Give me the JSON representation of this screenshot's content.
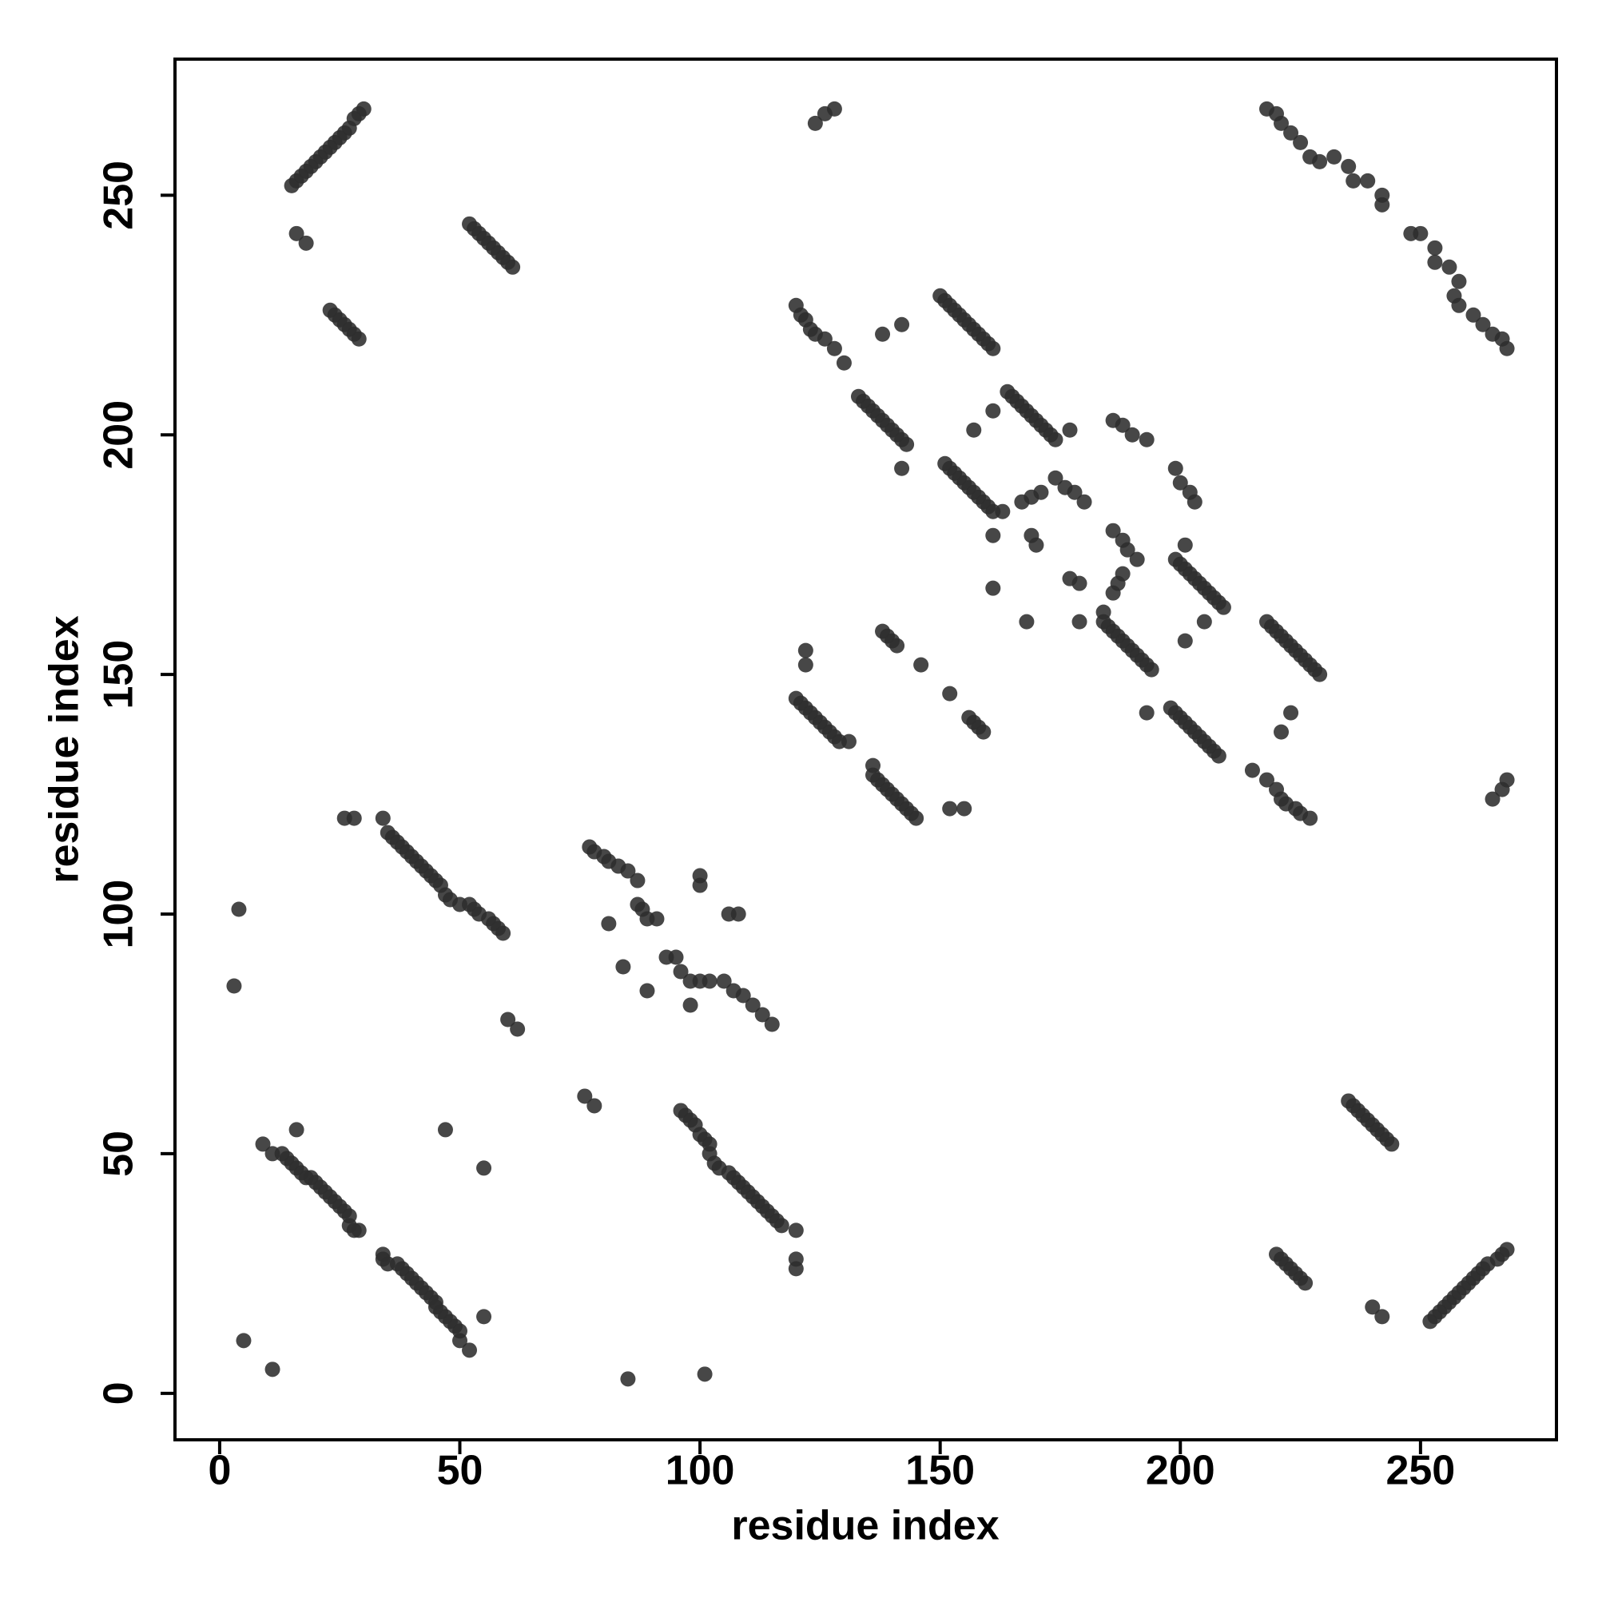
{
  "chart_data": {
    "type": "scatter",
    "xlabel": "residue index",
    "ylabel": "residue index",
    "color": "#2e2e2e",
    "xlim": [
      -9.3,
      278.3
    ],
    "ylim": [
      -9.7,
      278.4
    ],
    "xticks": [
      0,
      50,
      100,
      150,
      200,
      250
    ],
    "yticks": [
      0,
      50,
      100,
      150,
      200,
      250
    ],
    "grid": false,
    "x": [
      9,
      11,
      13,
      14,
      15,
      16,
      17,
      18,
      19,
      20,
      21,
      22,
      23,
      24,
      25,
      26,
      27,
      27,
      28,
      29,
      5,
      16,
      47,
      34,
      35,
      36,
      37,
      38,
      39,
      40,
      41,
      42,
      43,
      44,
      45,
      46,
      47,
      48,
      50,
      52,
      53,
      54,
      56,
      57,
      58,
      59,
      26,
      28,
      52,
      53,
      54,
      55,
      56,
      57,
      58,
      59,
      60,
      61,
      16,
      18,
      23,
      24,
      25,
      26,
      27,
      28,
      29,
      15,
      16,
      17,
      18,
      19,
      20,
      21,
      22,
      23,
      24,
      25,
      26,
      27,
      28,
      29,
      30,
      3,
      4,
      60,
      62,
      124,
      126,
      128,
      120,
      121,
      122,
      123,
      124,
      126,
      128,
      130,
      138,
      142,
      150,
      151,
      152,
      153,
      154,
      155,
      156,
      157,
      158,
      159,
      160,
      161,
      133,
      134,
      135,
      136,
      137,
      138,
      139,
      140,
      141,
      142,
      143,
      142,
      164,
      165,
      166,
      167,
      168,
      169,
      170,
      171,
      172,
      173,
      174,
      157,
      161,
      177,
      151,
      152,
      153,
      154,
      155,
      156,
      157,
      158,
      159,
      160,
      161,
      163,
      167,
      169,
      171,
      174,
      176,
      178,
      180,
      169,
      170,
      161,
      161,
      186,
      188,
      190,
      193,
      138,
      139,
      140,
      141,
      146,
      122,
      122,
      120,
      121,
      122,
      123,
      124,
      125,
      126,
      127,
      128,
      129,
      131,
      81,
      84,
      100,
      100,
      52,
      50,
      50,
      49,
      48,
      47,
      46,
      45,
      45,
      44,
      43,
      42,
      41,
      40,
      39,
      38,
      37,
      35,
      34,
      34,
      11,
      55,
      55,
      120,
      117,
      116,
      115,
      114,
      113,
      112,
      111,
      110,
      109,
      108,
      107,
      106,
      104,
      103,
      102,
      102,
      101,
      100,
      99,
      98,
      97,
      96,
      120,
      120,
      244,
      243,
      242,
      241,
      240,
      239,
      238,
      237,
      236,
      235,
      242,
      240,
      226,
      225,
      224,
      223,
      222,
      221,
      220,
      252,
      253,
      254,
      255,
      256,
      257,
      258,
      259,
      260,
      261,
      262,
      263,
      264,
      266,
      267,
      268,
      85,
      101,
      78,
      76,
      265,
      267,
      268,
      227,
      225,
      224,
      222,
      221,
      220,
      218,
      215,
      221,
      223,
      229,
      228,
      227,
      226,
      225,
      224,
      223,
      222,
      221,
      220,
      219,
      218,
      208,
      207,
      206,
      205,
      204,
      203,
      202,
      201,
      200,
      199,
      198,
      193,
      209,
      208,
      207,
      206,
      205,
      204,
      203,
      202,
      201,
      200,
      199,
      201,
      205,
      201,
      194,
      193,
      192,
      191,
      190,
      189,
      188,
      187,
      186,
      185,
      184,
      184,
      186,
      187,
      188,
      191,
      189,
      188,
      186,
      179,
      177,
      179,
      168,
      203,
      202,
      200,
      199,
      159,
      158,
      157,
      156,
      152,
      155,
      152,
      145,
      144,
      143,
      142,
      141,
      140,
      139,
      138,
      137,
      136,
      136,
      98,
      89,
      108,
      106,
      218,
      220,
      221,
      223,
      225,
      227,
      229,
      232,
      235,
      236,
      239,
      242,
      242,
      248,
      250,
      253,
      253,
      256,
      258,
      257,
      258,
      261,
      263,
      265,
      267,
      268,
      77,
      78,
      80,
      81,
      83,
      85,
      87,
      87,
      88,
      89,
      91,
      93,
      95,
      96,
      98,
      100,
      102,
      105,
      107,
      109,
      111,
      113,
      115
    ],
    "values": [
      52,
      50,
      50,
      49,
      48,
      47,
      46,
      45,
      45,
      44,
      43,
      42,
      41,
      40,
      39,
      38,
      37,
      35,
      34,
      34,
      11,
      55,
      55,
      120,
      117,
      116,
      115,
      114,
      113,
      112,
      111,
      110,
      109,
      108,
      107,
      106,
      104,
      103,
      102,
      102,
      101,
      100,
      99,
      98,
      97,
      96,
      120,
      120,
      244,
      243,
      242,
      241,
      240,
      239,
      238,
      237,
      236,
      235,
      242,
      240,
      226,
      225,
      224,
      223,
      222,
      221,
      220,
      252,
      253,
      254,
      255,
      256,
      257,
      258,
      259,
      260,
      261,
      262,
      263,
      264,
      266,
      267,
      268,
      85,
      101,
      78,
      76,
      265,
      267,
      268,
      227,
      225,
      224,
      222,
      221,
      220,
      218,
      215,
      221,
      223,
      229,
      228,
      227,
      226,
      225,
      224,
      223,
      222,
      221,
      220,
      219,
      218,
      208,
      207,
      206,
      205,
      204,
      203,
      202,
      201,
      200,
      199,
      198,
      193,
      209,
      208,
      207,
      206,
      205,
      204,
      203,
      202,
      201,
      200,
      199,
      201,
      205,
      201,
      194,
      193,
      192,
      191,
      190,
      189,
      188,
      187,
      186,
      185,
      184,
      184,
      186,
      187,
      188,
      191,
      189,
      188,
      186,
      179,
      177,
      179,
      168,
      203,
      202,
      200,
      199,
      159,
      158,
      157,
      156,
      152,
      155,
      152,
      145,
      144,
      143,
      142,
      141,
      140,
      139,
      138,
      137,
      136,
      136,
      98,
      89,
      108,
      106,
      9,
      11,
      13,
      14,
      15,
      16,
      17,
      18,
      19,
      20,
      21,
      22,
      23,
      24,
      25,
      26,
      27,
      27,
      28,
      29,
      5,
      16,
      47,
      34,
      35,
      36,
      37,
      38,
      39,
      40,
      41,
      42,
      43,
      44,
      45,
      46,
      47,
      48,
      50,
      52,
      53,
      54,
      56,
      57,
      58,
      59,
      26,
      28,
      52,
      53,
      54,
      55,
      56,
      57,
      58,
      59,
      60,
      61,
      16,
      18,
      23,
      24,
      25,
      26,
      27,
      28,
      29,
      15,
      16,
      17,
      18,
      19,
      20,
      21,
      22,
      23,
      24,
      25,
      26,
      27,
      28,
      29,
      30,
      3,
      4,
      60,
      62,
      124,
      126,
      128,
      120,
      121,
      122,
      123,
      124,
      126,
      128,
      130,
      138,
      142,
      150,
      151,
      152,
      153,
      154,
      155,
      156,
      157,
      158,
      159,
      160,
      161,
      133,
      134,
      135,
      136,
      137,
      138,
      139,
      140,
      141,
      142,
      143,
      142,
      164,
      165,
      166,
      167,
      168,
      169,
      170,
      171,
      172,
      173,
      174,
      157,
      161,
      177,
      151,
      152,
      153,
      154,
      155,
      156,
      157,
      158,
      159,
      160,
      161,
      163,
      167,
      169,
      171,
      174,
      176,
      178,
      180,
      169,
      170,
      161,
      161,
      186,
      188,
      190,
      193,
      138,
      139,
      140,
      141,
      146,
      122,
      122,
      120,
      121,
      122,
      123,
      124,
      125,
      126,
      127,
      128,
      129,
      131,
      81,
      84,
      100,
      100,
      268,
      267,
      265,
      263,
      261,
      258,
      257,
      258,
      256,
      253,
      253,
      250,
      248,
      242,
      242,
      239,
      236,
      235,
      232,
      229,
      227,
      225,
      223,
      221,
      220,
      218,
      114,
      113,
      112,
      111,
      110,
      109,
      107,
      102,
      101,
      99,
      99,
      91,
      91,
      88,
      86,
      86,
      86,
      86,
      84,
      83,
      81,
      79,
      77
    ]
  }
}
